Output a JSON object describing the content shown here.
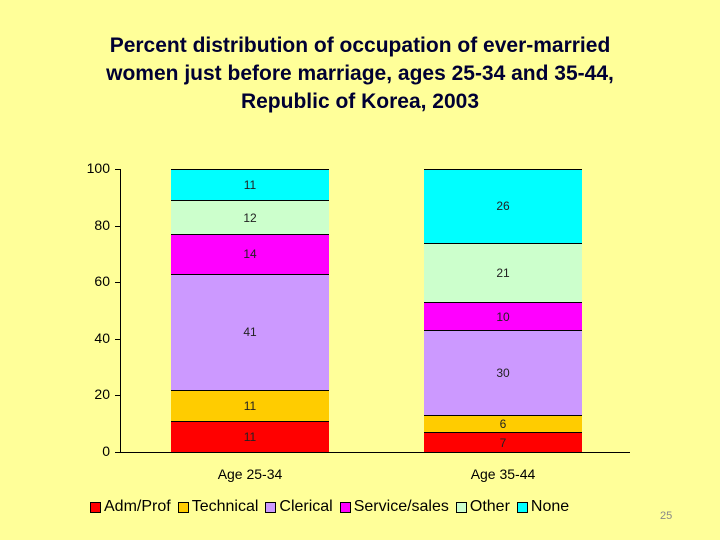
{
  "title_lines": [
    "Percent distribution of occupation of ever-married",
    "women just before marriage, ages 25-34 and 35-44,",
    "Republic of Korea, 2003"
  ],
  "page_number": "25",
  "chart_data": {
    "type": "bar",
    "stacked": true,
    "title": "Percent distribution of occupation of ever-married women just before marriage, ages 25-34 and 35-44, Republic of Korea, 2003",
    "xlabel": "",
    "ylabel": "",
    "ylim": [
      0,
      100
    ],
    "yticks": [
      "0",
      "20",
      "40",
      "60",
      "80",
      "100"
    ],
    "categories": [
      "Age 25-34",
      "Age 35-44"
    ],
    "series": [
      {
        "name": "Adm/Prof",
        "color": "#ff0000",
        "values": [
          11,
          7
        ]
      },
      {
        "name": "Technical",
        "color": "#ffcc00",
        "values": [
          11,
          6
        ]
      },
      {
        "name": "Clerical",
        "color": "#cc99ff",
        "values": [
          41,
          30
        ]
      },
      {
        "name": "Service/sales",
        "color": "#ff00ff",
        "values": [
          14,
          10
        ]
      },
      {
        "name": "Other",
        "color": "#ccffcc",
        "values": [
          12,
          21
        ]
      },
      {
        "name": "None",
        "color": "#00ffff",
        "values": [
          11,
          26
        ]
      }
    ],
    "legend_position": "bottom",
    "grid": false
  }
}
